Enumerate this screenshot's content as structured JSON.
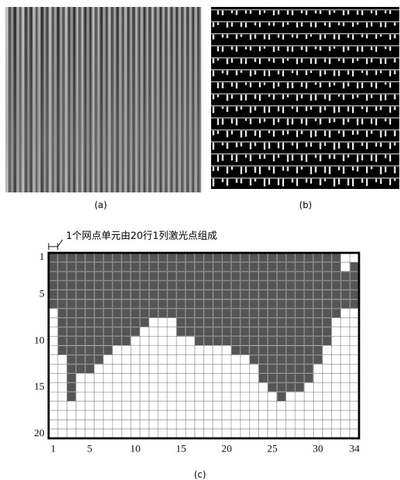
{
  "figures": {
    "a": {
      "label": "(a)"
    },
    "b": {
      "label": "(b)"
    },
    "c": {
      "label": "(c)"
    }
  },
  "grid": {
    "annotation": "1个网点单元由20行1列激光点组成",
    "row_ticks": [
      1,
      5,
      10,
      15,
      20
    ],
    "col_ticks": [
      1,
      5,
      10,
      15,
      20,
      25,
      30,
      34
    ],
    "dark_start": [
      1,
      1,
      1,
      1,
      1,
      1,
      1,
      1,
      1,
      1,
      1,
      1,
      1,
      1,
      1,
      1,
      1,
      1,
      1,
      1,
      1,
      1,
      1,
      1,
      1,
      1,
      1,
      1,
      1,
      1,
      1,
      1,
      3,
      2
    ],
    "dark_end": [
      6,
      11,
      16,
      13,
      13,
      12,
      11,
      10,
      10,
      9,
      8,
      7,
      7,
      7,
      9,
      9,
      10,
      10,
      10,
      10,
      11,
      11,
      12,
      14,
      15,
      16,
      15,
      15,
      14,
      12,
      10,
      7,
      6,
      6
    ]
  }
}
